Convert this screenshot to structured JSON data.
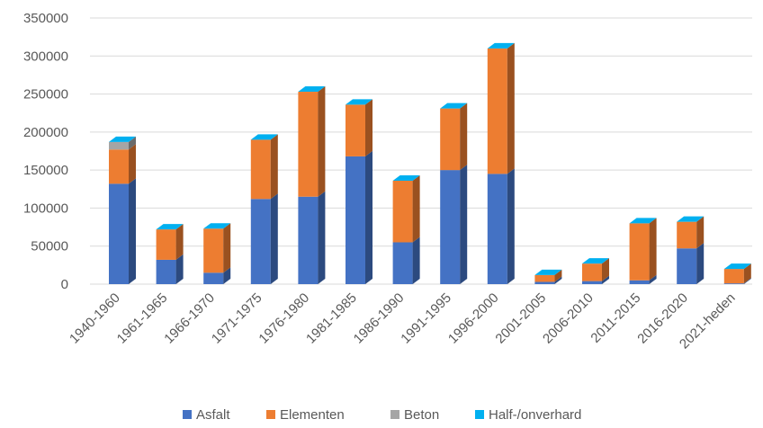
{
  "chart_data": {
    "type": "bar",
    "stacked": true,
    "three_d": true,
    "categories": [
      "1940-1960",
      "1961-1965",
      "1966-1970",
      "1971-1975",
      "1976-1980",
      "1981-1985",
      "1986-1990",
      "1991-1995",
      "1996-2000",
      "2001-2005",
      "2006-2010",
      "2011-2015",
      "2016-2020",
      "2021-heden"
    ],
    "series": [
      {
        "name": "Asfalt",
        "color": "#4472C4",
        "values": [
          132000,
          32000,
          15000,
          112000,
          115000,
          168000,
          55000,
          150000,
          145000,
          3000,
          4000,
          5000,
          47000,
          1000
        ]
      },
      {
        "name": "Elementen",
        "color": "#ED7D31",
        "values": [
          45000,
          40000,
          58000,
          78000,
          138000,
          68000,
          81000,
          81000,
          165000,
          9000,
          23000,
          75000,
          35000,
          19000
        ]
      },
      {
        "name": "Beton",
        "color": "#A5A5A5",
        "values": [
          10000,
          0,
          0,
          0,
          0,
          0,
          0,
          0,
          0,
          0,
          0,
          0,
          0,
          0
        ]
      },
      {
        "name": "Half-/onverhard",
        "color": "#00B0F0",
        "values": [
          0,
          0,
          0,
          0,
          0,
          0,
          0,
          0,
          0,
          0,
          0,
          0,
          0,
          0
        ]
      }
    ],
    "ylim": [
      0,
      350000
    ],
    "yticks": [
      0,
      50000,
      100000,
      150000,
      200000,
      250000,
      300000,
      350000
    ],
    "grid": true,
    "legend_position": "bottom"
  }
}
